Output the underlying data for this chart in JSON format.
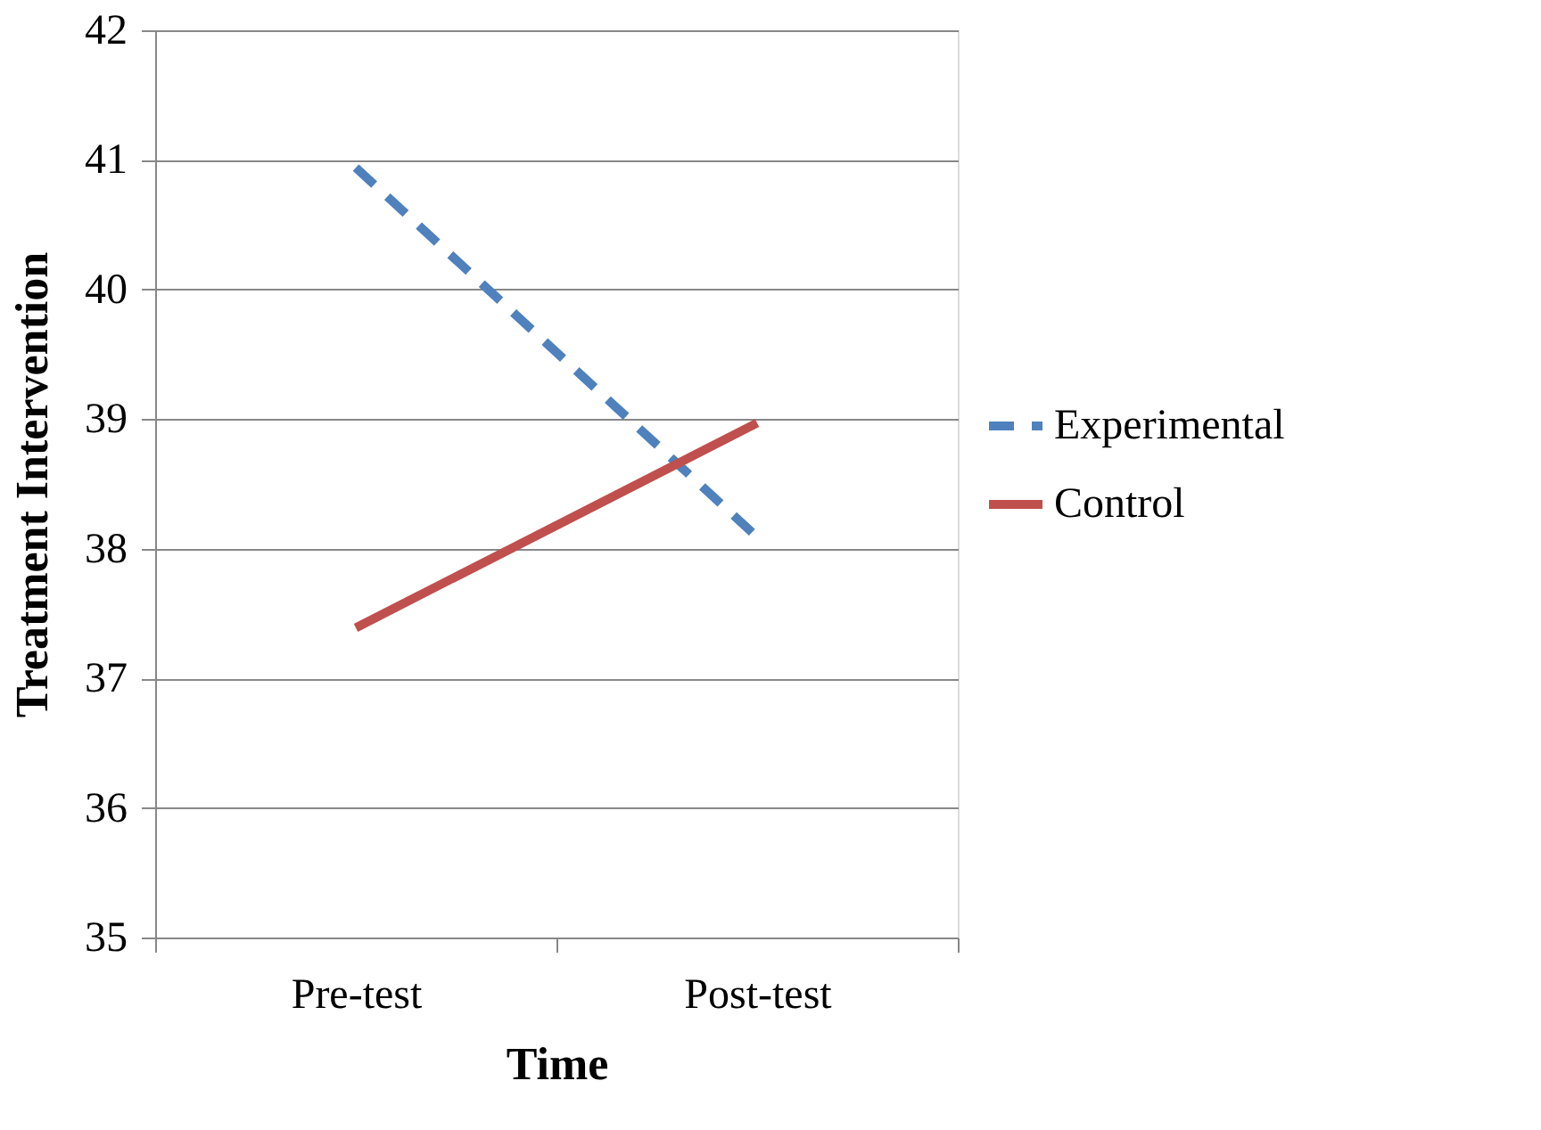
{
  "chart_data": {
    "type": "line",
    "xlabel": "Time",
    "ylabel": "Treatment Intervention",
    "categories": [
      "Pre-test",
      "Post-test"
    ],
    "series": [
      {
        "name": "Experimental",
        "color": "#4f81bd",
        "values": [
          40.94,
          38.09
        ],
        "line_style": "dashed"
      },
      {
        "name": "Control",
        "color": "#c0504d",
        "values": [
          37.39,
          38.97
        ],
        "line_style": "solid"
      }
    ],
    "ylim": [
      35,
      42
    ],
    "yticks": [
      35,
      36,
      37,
      38,
      39,
      40,
      41,
      42
    ],
    "grid": "y",
    "legend": "right"
  }
}
